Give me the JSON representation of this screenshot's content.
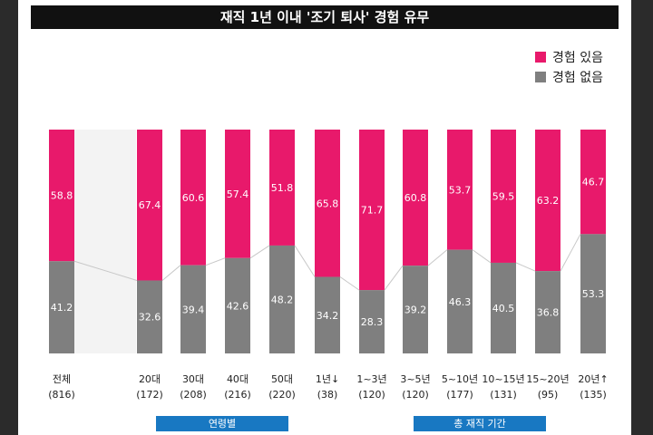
{
  "colors": {
    "experienced": "#e8196b",
    "not_experienced": "#7f7f7f",
    "title_bg": "#111111",
    "group_tag": "#1878c2"
  },
  "chart_data": {
    "type": "bar",
    "stacked": true,
    "title": "재직 1년 이내 '조기 퇴사' 경험 유무",
    "categories": [
      "전체",
      "20대",
      "30대",
      "40대",
      "50대",
      "1년↓",
      "1~3년",
      "3~5년",
      "5~10년",
      "10~15년",
      "15~20년",
      "20년↑"
    ],
    "counts": [
      "(816)",
      "(172)",
      "(208)",
      "(216)",
      "(220)",
      "(38)",
      "(120)",
      "(120)",
      "(177)",
      "(131)",
      "(95)",
      "(135)"
    ],
    "series": [
      {
        "name": "경험 있음",
        "values": [
          58.8,
          67.4,
          60.6,
          57.4,
          51.8,
          65.8,
          71.7,
          60.8,
          53.7,
          59.5,
          63.2,
          46.7
        ]
      },
      {
        "name": "경험 없음",
        "values": [
          41.2,
          32.6,
          39.4,
          42.6,
          48.2,
          34.2,
          28.3,
          39.2,
          46.3,
          40.5,
          36.8,
          53.3
        ]
      }
    ],
    "ylim": [
      0,
      100
    ],
    "group_labels": [
      "연령별",
      "총 재직 기간"
    ]
  }
}
